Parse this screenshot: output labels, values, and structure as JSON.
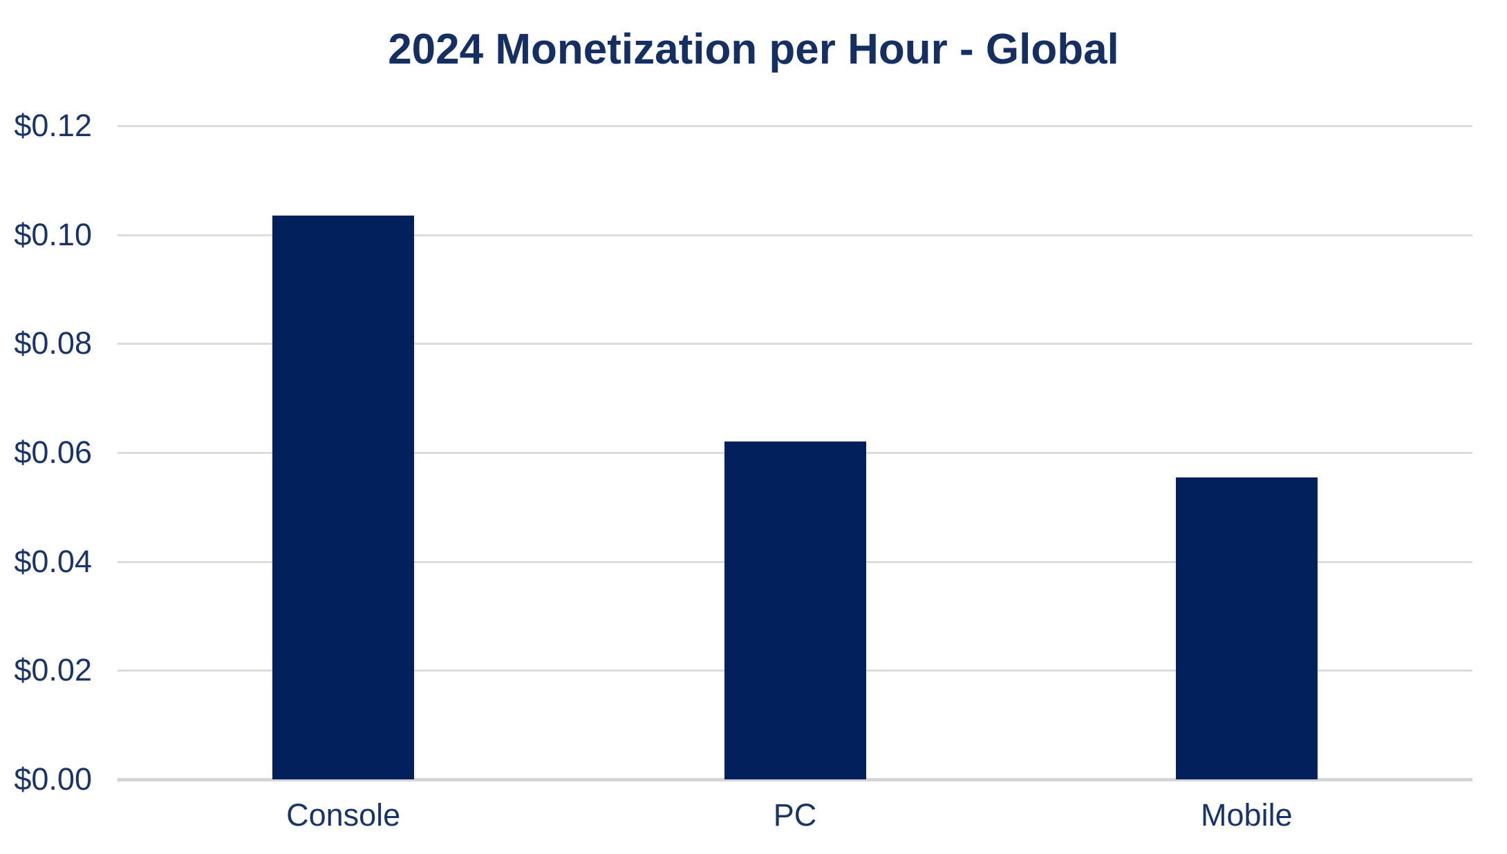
{
  "chart_data": {
    "type": "bar",
    "title": "2024 Monetization per Hour - Global",
    "categories": [
      "Console",
      "PC",
      "Mobile"
    ],
    "values": [
      0.1035,
      0.062,
      0.0554
    ],
    "xlabel": "",
    "ylabel": "",
    "ylim": [
      0,
      0.12
    ],
    "y_tick_step": 0.02,
    "y_ticks": [
      {
        "value": 0.12,
        "label": "$0.12"
      },
      {
        "value": 0.1,
        "label": "$0.10"
      },
      {
        "value": 0.08,
        "label": "$0.08"
      },
      {
        "value": 0.06,
        "label": "$0.06"
      },
      {
        "value": 0.04,
        "label": "$0.04"
      },
      {
        "value": 0.02,
        "label": "$0.02"
      },
      {
        "value": 0.0,
        "label": "$0.00"
      }
    ],
    "grid": true,
    "legend": false,
    "colors": {
      "bar": "#02215C",
      "title_text": "#152F63",
      "axis_text": "#1A3467",
      "gridline": "#DBDBDB",
      "baseline": "#D5D5D5",
      "background": "#FFFFFF"
    }
  }
}
